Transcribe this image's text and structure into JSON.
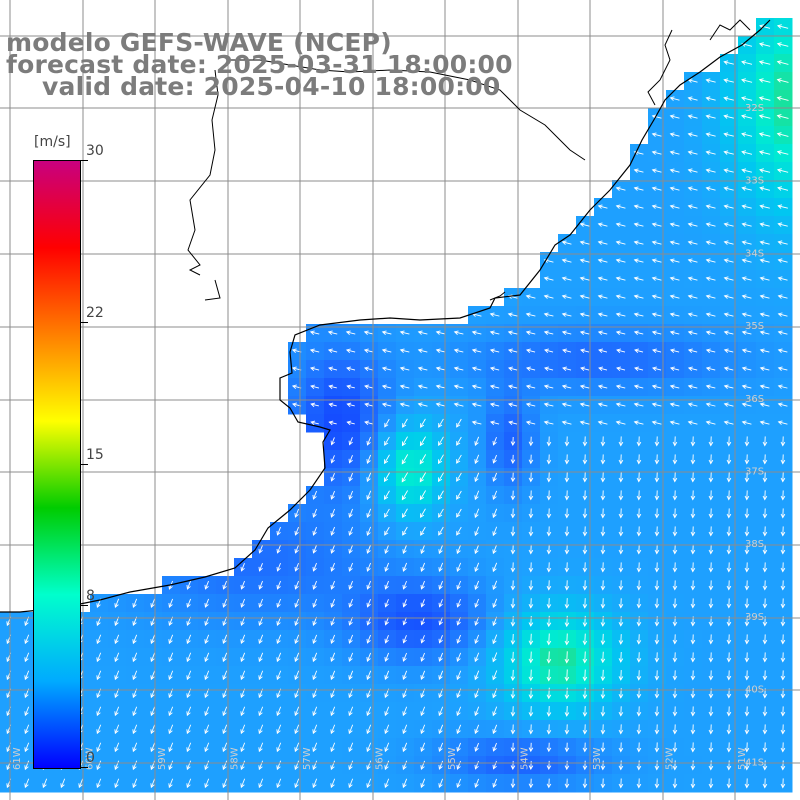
{
  "title": {
    "line1": "modelo GEFS-WAVE (NCEP)",
    "line2": "forecast date: 2025-03-31 18:00:00",
    "line3": "valid date: 2025-04-10 18:00:00"
  },
  "colorbar": {
    "unit": "[m/s]",
    "min": 0,
    "max": 30,
    "tick_labels": [
      "30",
      "22",
      "15",
      "8",
      "0"
    ],
    "tick_values": [
      30,
      22,
      15,
      8,
      0
    ],
    "colors": [
      "#c8007f",
      "#ff0000",
      "#ff7f00",
      "#ffff00",
      "#00cc00",
      "#00ffcc",
      "#00aaff",
      "#0000ff"
    ]
  },
  "map": {
    "latitude_labels": [
      "32S",
      "33S",
      "34S",
      "35S",
      "36S",
      "37S",
      "38S",
      "39S",
      "40S",
      "41S"
    ],
    "longitude_labels": [
      "61W",
      "60W",
      "59W",
      "58W",
      "57W",
      "56W",
      "55W",
      "54W",
      "53W",
      "52W",
      "51W"
    ],
    "wind_speed_shown_range_ms": [
      2,
      14
    ],
    "dominant_wind_direction": "from the east / northeast",
    "colors": {
      "low_speed": "#0a3cff",
      "mid_speed": "#1e90ff",
      "high_speed": "#00e5d8",
      "max_speed": "#33dd66",
      "coast": "#000000",
      "grid": "#8c8c8c",
      "vectors": "#ffffff"
    }
  }
}
